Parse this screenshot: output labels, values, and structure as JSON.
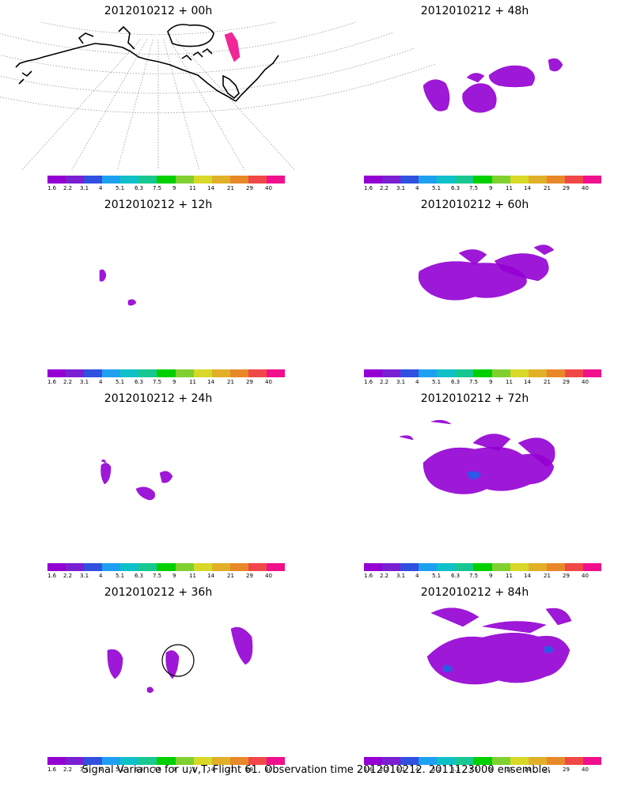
{
  "panels": [
    {
      "title": "2012010212 + 00h",
      "lead": 0
    },
    {
      "title": "2012010212 + 48h",
      "lead": 48
    },
    {
      "title": "2012010212 + 12h",
      "lead": 12
    },
    {
      "title": "2012010212 + 60h",
      "lead": 60
    },
    {
      "title": "2012010212 + 24h",
      "lead": 24
    },
    {
      "title": "2012010212 + 72h",
      "lead": 72
    },
    {
      "title": "2012010212 + 36h",
      "lead": 36
    },
    {
      "title": "2012010212 + 84h",
      "lead": 84
    }
  ],
  "colorbar": {
    "labels": [
      "1.6",
      "2.2",
      "3.1",
      "4",
      "5.1",
      "6.3",
      "7.5",
      "9",
      "11",
      "14",
      "21",
      "29",
      "40"
    ],
    "colors": [
      "#9400d3",
      "#7b1fd2",
      "#3050e0",
      "#1ea0f0",
      "#10c0c8",
      "#18c890",
      "#00d000",
      "#80d030",
      "#d8d828",
      "#e0b028",
      "#e88828",
      "#f04848",
      "#f0108c"
    ]
  },
  "caption": "Signal Variance for u,v,T. Flight 61. Observation time 2012010212. 2011123000 ensemble.",
  "colors": {
    "signal_base": "#9400d3",
    "signal_high": "#f0108c",
    "signal_mid": "#2060e8",
    "coast": "#000000",
    "grid": "#999999"
  }
}
